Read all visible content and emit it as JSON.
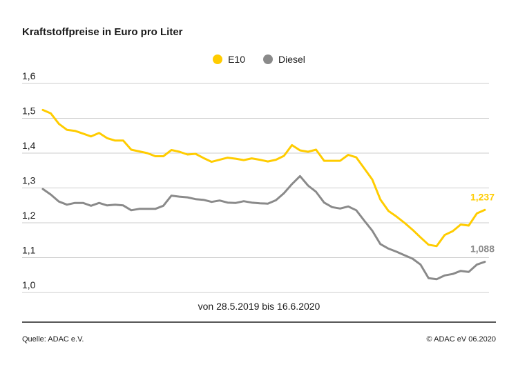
{
  "colors": {
    "e10": "#ffcc00",
    "diesel": "#8a8a8a",
    "grid": "#cccccc",
    "text": "#1a1a1a"
  },
  "chart_data": {
    "type": "line",
    "title": "Kraftstoffpreise in Euro pro Liter",
    "subtitle": "von 28.5.2019 bis 16.6.2020",
    "ylim": [
      1.0,
      1.6
    ],
    "y_ticks": [
      "1,6",
      "1,5",
      "1,4",
      "1,3",
      "1,2",
      "1,1",
      "1,0"
    ],
    "y_tick_values": [
      1.6,
      1.5,
      1.4,
      1.3,
      1.2,
      1.1,
      1.0
    ],
    "grid": true,
    "legend_position": "top-center",
    "x_start": "28.5.2019",
    "x_end": "16.6.2020",
    "series": [
      {
        "name": "E10",
        "color": "#ffcc00",
        "end_label": "1,237",
        "values": [
          1.524,
          1.514,
          1.484,
          1.467,
          1.464,
          1.456,
          1.448,
          1.458,
          1.443,
          1.436,
          1.436,
          1.41,
          1.405,
          1.4,
          1.391,
          1.391,
          1.409,
          1.404,
          1.396,
          1.398,
          1.386,
          1.375,
          1.381,
          1.387,
          1.384,
          1.38,
          1.385,
          1.381,
          1.376,
          1.381,
          1.392,
          1.423,
          1.408,
          1.404,
          1.41,
          1.378,
          1.378,
          1.378,
          1.395,
          1.388,
          1.356,
          1.324,
          1.267,
          1.234,
          1.218,
          1.2,
          1.18,
          1.158,
          1.137,
          1.133,
          1.165,
          1.176,
          1.195,
          1.192,
          1.227,
          1.237
        ]
      },
      {
        "name": "Diesel",
        "color": "#8a8a8a",
        "end_label": "1,088",
        "values": [
          1.297,
          1.281,
          1.261,
          1.252,
          1.257,
          1.257,
          1.249,
          1.257,
          1.25,
          1.252,
          1.25,
          1.236,
          1.24,
          1.24,
          1.24,
          1.249,
          1.278,
          1.275,
          1.273,
          1.268,
          1.266,
          1.26,
          1.264,
          1.258,
          1.257,
          1.262,
          1.258,
          1.256,
          1.255,
          1.265,
          1.285,
          1.311,
          1.334,
          1.307,
          1.289,
          1.258,
          1.245,
          1.241,
          1.247,
          1.236,
          1.206,
          1.177,
          1.139,
          1.126,
          1.117,
          1.107,
          1.097,
          1.08,
          1.041,
          1.038,
          1.049,
          1.053,
          1.062,
          1.059,
          1.08,
          1.088
        ]
      }
    ]
  },
  "footer": {
    "source": "Quelle: ADAC e.V.",
    "copyright": "© ADAC eV 06.2020"
  }
}
